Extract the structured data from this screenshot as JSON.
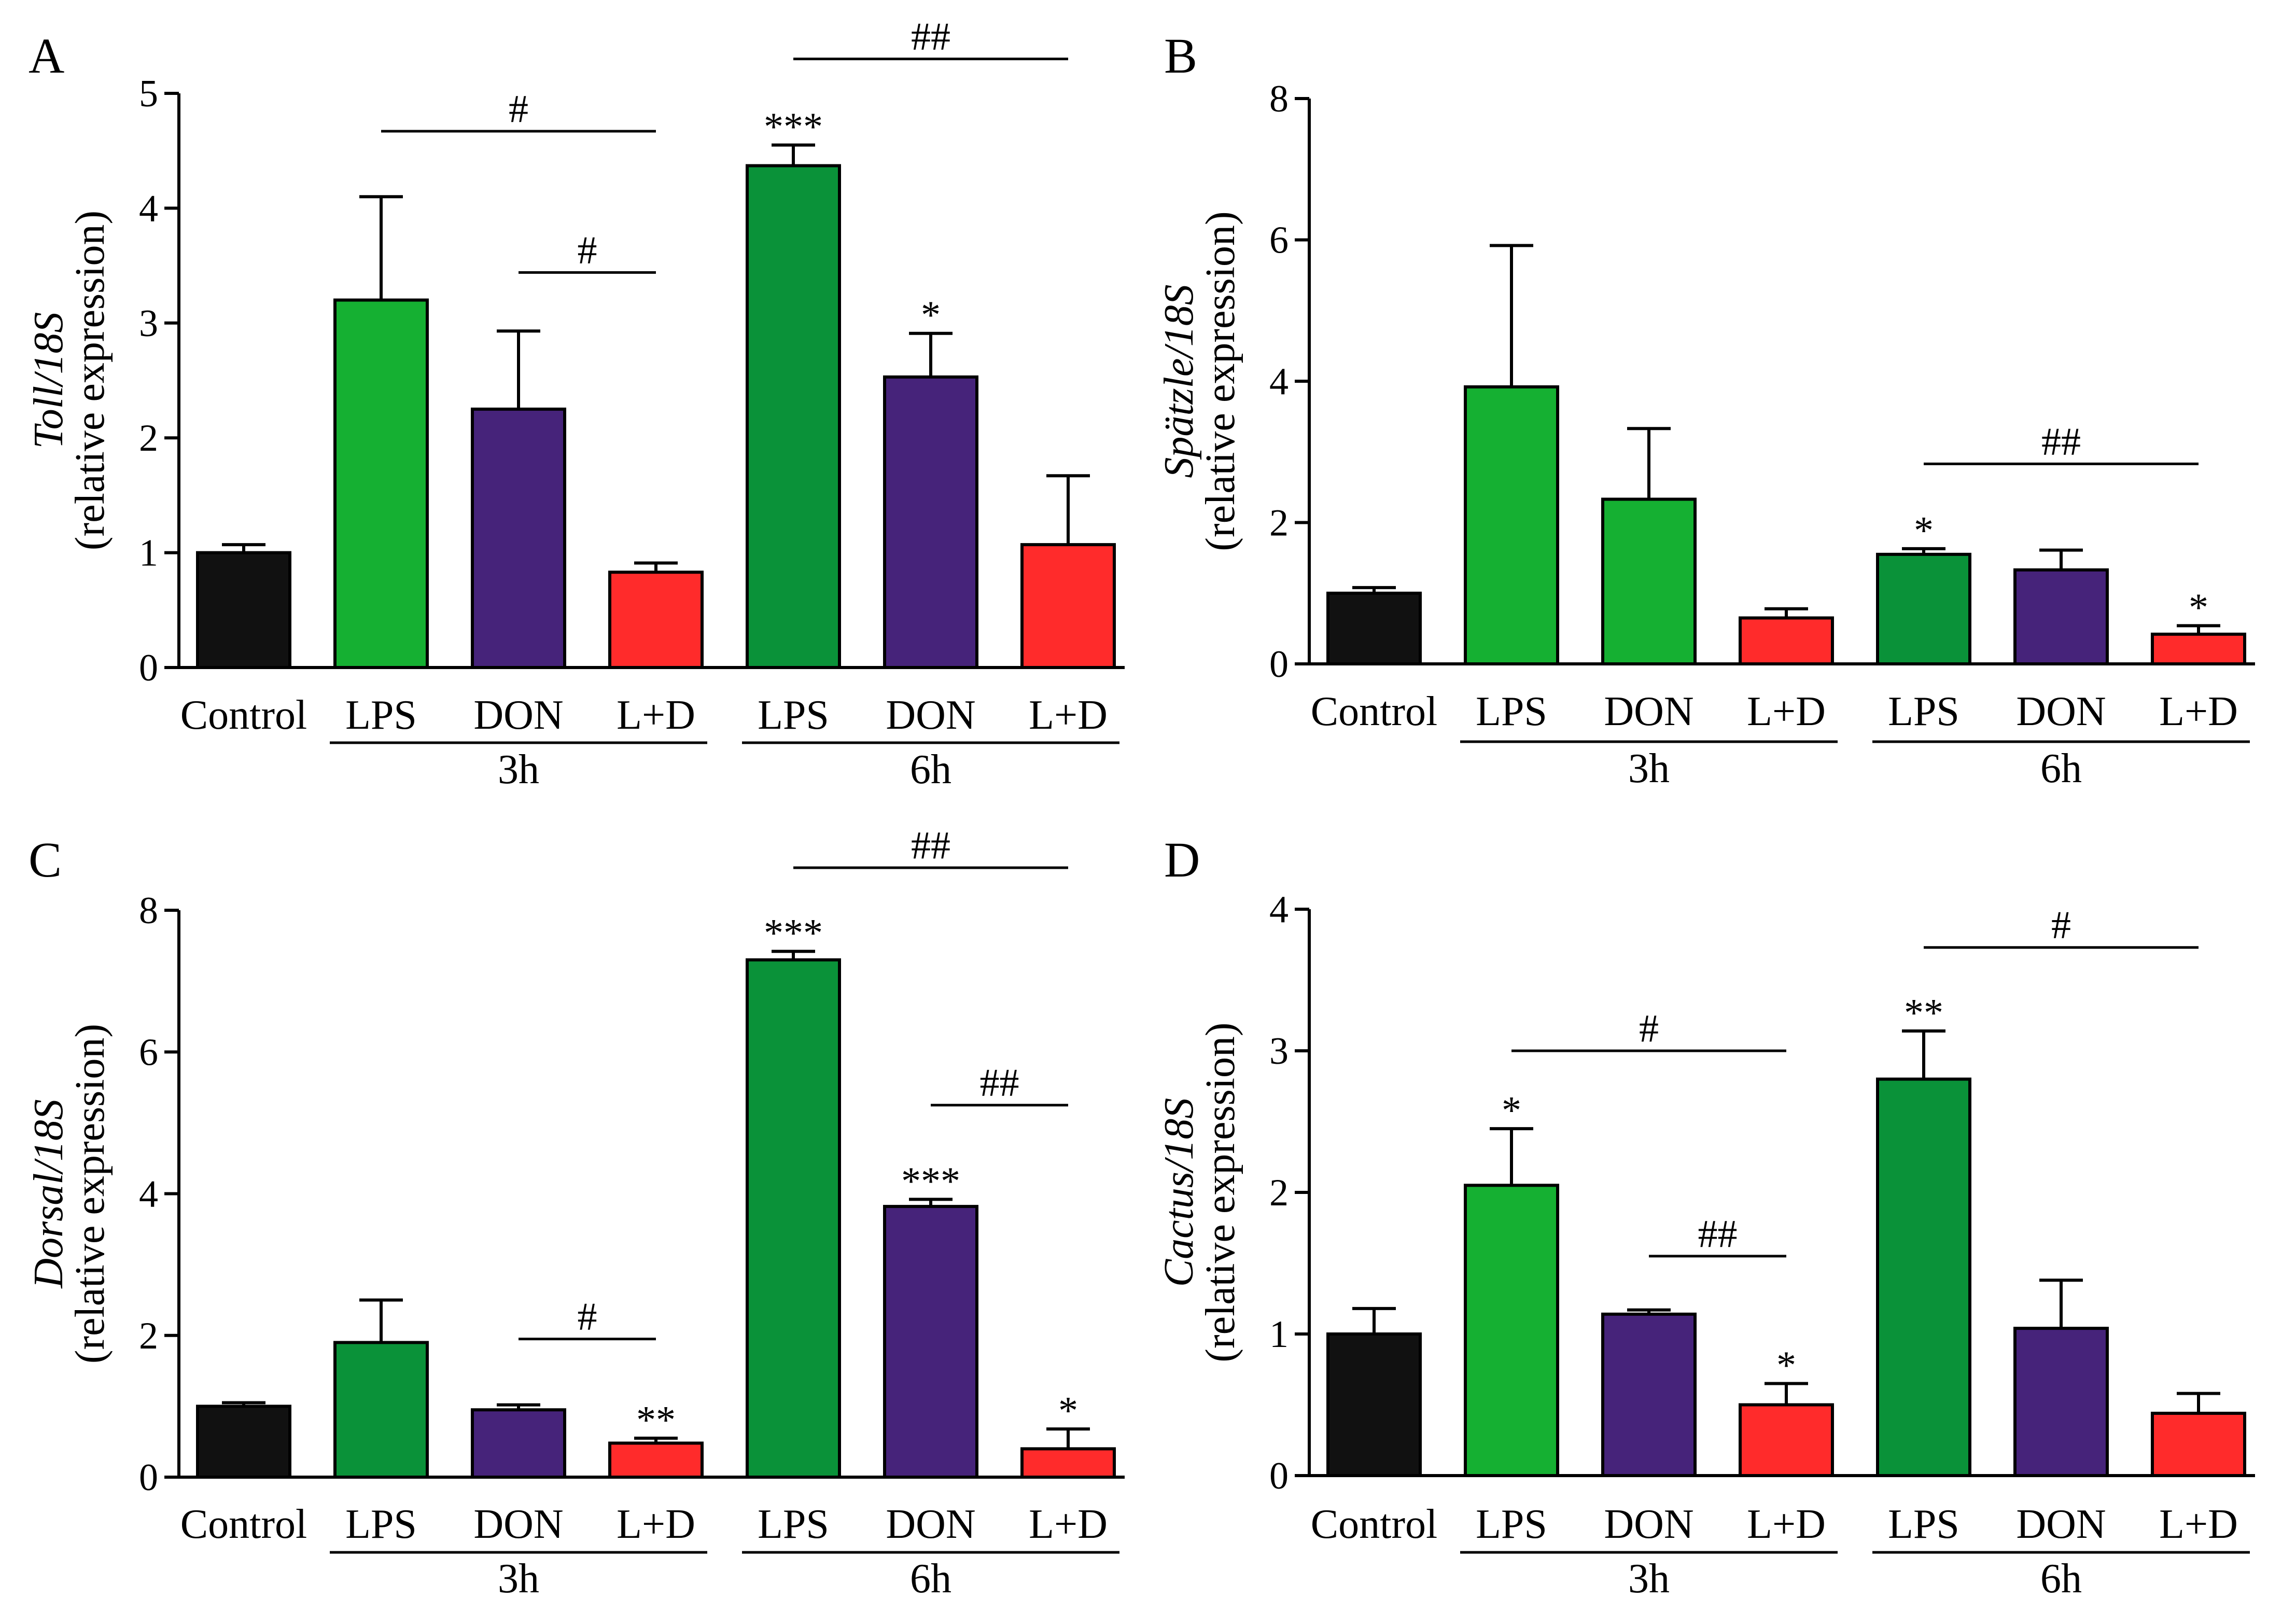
{
  "colors": {
    "control": "#111111",
    "green_light": "#15b032",
    "green_dark": "#0a9239",
    "purple": "#46237a",
    "red": "#ff2b2b"
  },
  "chart_data": [
    {
      "panel": "A",
      "type": "bar",
      "ylabel_italic": "Toll/18S",
      "ylabel": "(relative expression)",
      "ylim": [
        0,
        5
      ],
      "yticks": [
        "0",
        "1",
        "2",
        "3",
        "4",
        "5"
      ],
      "categories": [
        "Control",
        "LPS",
        "DON",
        "L+D",
        "LPS",
        "DON",
        "L+D"
      ],
      "groups": [
        {
          "label": "3h",
          "from": 1,
          "to": 3
        },
        {
          "label": "6h",
          "from": 4,
          "to": 6
        }
      ],
      "values": [
        1.0,
        3.2,
        2.25,
        0.83,
        4.37,
        2.53,
        1.07
      ],
      "errors": [
        0.07,
        0.9,
        0.68,
        0.08,
        0.18,
        0.38,
        0.6
      ],
      "colors": [
        "control",
        "green_light",
        "purple",
        "red",
        "green_dark",
        "purple",
        "red"
      ],
      "stars": [
        "",
        "",
        "",
        "",
        "***",
        "*",
        ""
      ],
      "brackets": [
        {
          "from": 1,
          "to": 3,
          "y": 4.67,
          "label": "#"
        },
        {
          "from": 2,
          "to": 3,
          "y": 3.44,
          "label": "#"
        },
        {
          "from": 4,
          "to": 6,
          "y": 5.3,
          "label": "##"
        }
      ]
    },
    {
      "panel": "B",
      "type": "bar",
      "ylabel_italic": "Spätzle/18S",
      "ylabel": "(relative expression)",
      "ylim": [
        0,
        8
      ],
      "yticks": [
        "0",
        "2",
        "4",
        "6",
        "8"
      ],
      "categories": [
        "Control",
        "LPS",
        "DON",
        "L+D",
        "LPS",
        "DON",
        "L+D"
      ],
      "groups": [
        {
          "label": "3h",
          "from": 1,
          "to": 3
        },
        {
          "label": "6h",
          "from": 4,
          "to": 6
        }
      ],
      "values": [
        1.0,
        3.92,
        2.33,
        0.65,
        1.55,
        1.33,
        0.42
      ],
      "errors": [
        0.08,
        2.0,
        1.0,
        0.13,
        0.08,
        0.28,
        0.12
      ],
      "colors": [
        "control",
        "green_light",
        "green_light",
        "red",
        "green_dark",
        "purple",
        "red"
      ],
      "stars": [
        "",
        "",
        "",
        "",
        "*",
        "",
        "*"
      ],
      "brackets": [
        {
          "from": 4,
          "to": 6,
          "y": 2.83,
          "label": "##"
        }
      ]
    },
    {
      "panel": "C",
      "type": "bar",
      "ylabel_italic": "Dorsal/18S",
      "ylabel": "(relative expression)",
      "ylim": [
        0,
        8
      ],
      "yticks": [
        "0",
        "2",
        "4",
        "6",
        "8"
      ],
      "categories": [
        "Control",
        "LPS",
        "DON",
        "L+D",
        "LPS",
        "DON",
        "L+D"
      ],
      "groups": [
        {
          "label": "3h",
          "from": 1,
          "to": 3
        },
        {
          "label": "6h",
          "from": 4,
          "to": 6
        }
      ],
      "values": [
        1.0,
        1.9,
        0.95,
        0.48,
        7.3,
        3.82,
        0.4
      ],
      "errors": [
        0.05,
        0.6,
        0.07,
        0.07,
        0.12,
        0.1,
        0.28
      ],
      "colors": [
        "control",
        "green_dark",
        "purple",
        "red",
        "green_dark",
        "purple",
        "red"
      ],
      "stars": [
        "",
        "",
        "",
        "**",
        "***",
        "***",
        "*"
      ],
      "brackets": [
        {
          "from": 2,
          "to": 3,
          "y": 1.95,
          "label": "#"
        },
        {
          "from": 5,
          "to": 6,
          "y": 5.25,
          "label": "##"
        },
        {
          "from": 4,
          "to": 6,
          "y": 8.6,
          "label": "##"
        }
      ]
    },
    {
      "panel": "D",
      "type": "bar",
      "ylabel_italic": "Cactus/18S",
      "ylabel": "(relative expression)",
      "ylim": [
        0,
        4
      ],
      "yticks": [
        "0",
        "1",
        "2",
        "3",
        "4"
      ],
      "categories": [
        "Control",
        "LPS",
        "DON",
        "L+D",
        "LPS",
        "DON",
        "L+D"
      ],
      "groups": [
        {
          "label": "3h",
          "from": 1,
          "to": 3
        },
        {
          "label": "6h",
          "from": 4,
          "to": 6
        }
      ],
      "values": [
        1.0,
        2.05,
        1.14,
        0.5,
        2.8,
        1.04,
        0.44
      ],
      "errors": [
        0.18,
        0.4,
        0.03,
        0.15,
        0.34,
        0.34,
        0.14
      ],
      "colors": [
        "control",
        "green_light",
        "purple",
        "red",
        "green_dark",
        "purple",
        "red"
      ],
      "stars": [
        "",
        "*",
        "",
        "*",
        "**",
        "",
        ""
      ],
      "brackets": [
        {
          "from": 1,
          "to": 3,
          "y": 3.0,
          "label": "#"
        },
        {
          "from": 2,
          "to": 3,
          "y": 1.55,
          "label": "##"
        },
        {
          "from": 4,
          "to": 6,
          "y": 3.73,
          "label": "#"
        }
      ]
    }
  ]
}
